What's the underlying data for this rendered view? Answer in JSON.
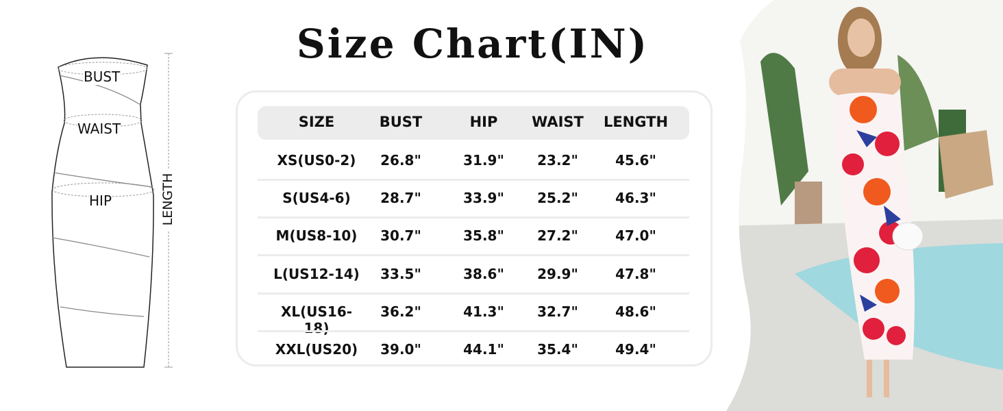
{
  "title": "Size Chart(IN)",
  "diagram": {
    "labels": {
      "bust": "BUST",
      "waist": "WAIST",
      "hip": "HIP",
      "length": "LENGTH"
    }
  },
  "table": {
    "headers": [
      "SIZE",
      "BUST",
      "HIP",
      "WAIST",
      "LENGTH"
    ],
    "rows": [
      [
        "XS(US0-2)",
        "26.8\"",
        "31.9\"",
        "23.2\"",
        "45.6\""
      ],
      [
        "S(US4-6)",
        "28.7\"",
        "33.9\"",
        "25.2\"",
        "46.3\""
      ],
      [
        "M(US8-10)",
        "30.7\"",
        "35.8\"",
        "27.2\"",
        "47.0\""
      ],
      [
        "L(US12-14)",
        "33.5\"",
        "38.6\"",
        "29.9\"",
        "47.8\""
      ],
      [
        "XL(US16-18)",
        "36.2\"",
        "41.3\"",
        "32.7\"",
        "48.6\""
      ],
      [
        "XXL(US20)",
        "39.0\"",
        "44.1\"",
        "35.4\"",
        "49.4\""
      ]
    ]
  },
  "colors": {
    "header_bg": "#ececec",
    "dress_red": "#e0203c",
    "dress_orange": "#f05a1e",
    "pool": "#9fd8df"
  }
}
